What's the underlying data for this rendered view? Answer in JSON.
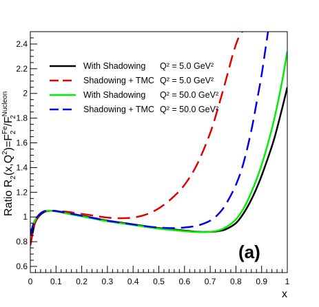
{
  "chart_data": {
    "type": "line",
    "xlabel": "x",
    "ylabel": "Ratio R₂(x,Q²)=F₂^Fe/F₂^Nucleon",
    "xlim": [
      0,
      1
    ],
    "ylim": [
      0.55,
      2.5
    ],
    "xticks": [
      0,
      0.1,
      0.2,
      0.3,
      0.4,
      0.5,
      0.6,
      0.7,
      0.8,
      0.9,
      1
    ],
    "xtick_labels": [
      "0",
      "0.1",
      "0.2",
      "0.3",
      "0.4",
      "0.5",
      "0.6",
      "0.7",
      "0.8",
      "0.9",
      "1"
    ],
    "yticks": [
      0.6,
      0.8,
      1.0,
      1.2,
      1.4,
      1.6,
      1.8,
      2.0,
      2.2,
      2.4
    ],
    "ytick_labels": [
      "0.6",
      "0.8",
      "1",
      "1.2",
      "1.4",
      "1.6",
      "1.8",
      "2",
      "2.2",
      "2.4"
    ],
    "grid": false,
    "legend_position": "top-left",
    "panel_label": "(a)",
    "series": [
      {
        "name": "With Shadowing",
        "q2_label": "Q² = 5.0 GeV²",
        "color": "#000000",
        "dash": "solid",
        "x": [
          0.0,
          0.01,
          0.02,
          0.04,
          0.06,
          0.08,
          0.1,
          0.15,
          0.2,
          0.25,
          0.3,
          0.35,
          0.4,
          0.45,
          0.5,
          0.55,
          0.6,
          0.65,
          0.7,
          0.73,
          0.76,
          0.8,
          0.83,
          0.86,
          0.89,
          0.92,
          0.95,
          0.98,
          1.0
        ],
        "y": [
          0.77,
          0.88,
          0.96,
          1.02,
          1.045,
          1.05,
          1.048,
          1.03,
          1.01,
          0.99,
          0.97,
          0.955,
          0.94,
          0.925,
          0.91,
          0.9,
          0.89,
          0.88,
          0.88,
          0.885,
          0.9,
          0.95,
          1.03,
          1.14,
          1.28,
          1.45,
          1.64,
          1.88,
          2.05
        ]
      },
      {
        "name": "Shadowing + TMC",
        "q2_label": "Q² = 5.0 GeV²",
        "color": "#e00000",
        "dash": "long-dash",
        "x": [
          0.0,
          0.01,
          0.02,
          0.04,
          0.06,
          0.08,
          0.1,
          0.15,
          0.2,
          0.25,
          0.3,
          0.35,
          0.4,
          0.45,
          0.5,
          0.55,
          0.6,
          0.65,
          0.7,
          0.73,
          0.76,
          0.79,
          0.81,
          0.825
        ],
        "y": [
          0.77,
          0.88,
          0.96,
          1.02,
          1.045,
          1.05,
          1.05,
          1.04,
          1.025,
          1.01,
          0.995,
          0.99,
          0.995,
          1.02,
          1.07,
          1.15,
          1.26,
          1.43,
          1.68,
          1.88,
          2.1,
          2.33,
          2.45,
          2.5
        ]
      },
      {
        "name": "With Shadowing",
        "q2_label": "Q² = 50.0 GeV²",
        "color": "#00ee00",
        "dash": "solid",
        "x": [
          0.0,
          0.01,
          0.02,
          0.04,
          0.06,
          0.08,
          0.1,
          0.15,
          0.2,
          0.25,
          0.3,
          0.35,
          0.4,
          0.45,
          0.5,
          0.55,
          0.6,
          0.65,
          0.7,
          0.73,
          0.76,
          0.8,
          0.83,
          0.86,
          0.89,
          0.92,
          0.95,
          0.98,
          1.0
        ],
        "y": [
          0.85,
          0.93,
          0.98,
          1.03,
          1.05,
          1.05,
          1.045,
          1.025,
          1.005,
          0.985,
          0.965,
          0.95,
          0.935,
          0.92,
          0.905,
          0.895,
          0.885,
          0.878,
          0.88,
          0.89,
          0.915,
          0.98,
          1.07,
          1.2,
          1.36,
          1.56,
          1.8,
          2.1,
          2.34
        ]
      },
      {
        "name": "Shadowing + TMC",
        "q2_label": "Q² = 50.0 GeV²",
        "color": "#0000ee",
        "dash": "long-dash",
        "x": [
          0.0,
          0.01,
          0.02,
          0.04,
          0.06,
          0.08,
          0.1,
          0.15,
          0.2,
          0.25,
          0.3,
          0.35,
          0.4,
          0.45,
          0.5,
          0.55,
          0.6,
          0.65,
          0.7,
          0.73,
          0.76,
          0.8,
          0.83,
          0.86,
          0.88,
          0.9,
          0.915,
          0.925
        ],
        "y": [
          0.85,
          0.93,
          0.98,
          1.03,
          1.05,
          1.05,
          1.048,
          1.03,
          1.01,
          0.99,
          0.97,
          0.955,
          0.94,
          0.925,
          0.915,
          0.91,
          0.915,
          0.93,
          0.97,
          1.02,
          1.1,
          1.26,
          1.44,
          1.7,
          1.92,
          2.15,
          2.36,
          2.5
        ]
      }
    ]
  }
}
